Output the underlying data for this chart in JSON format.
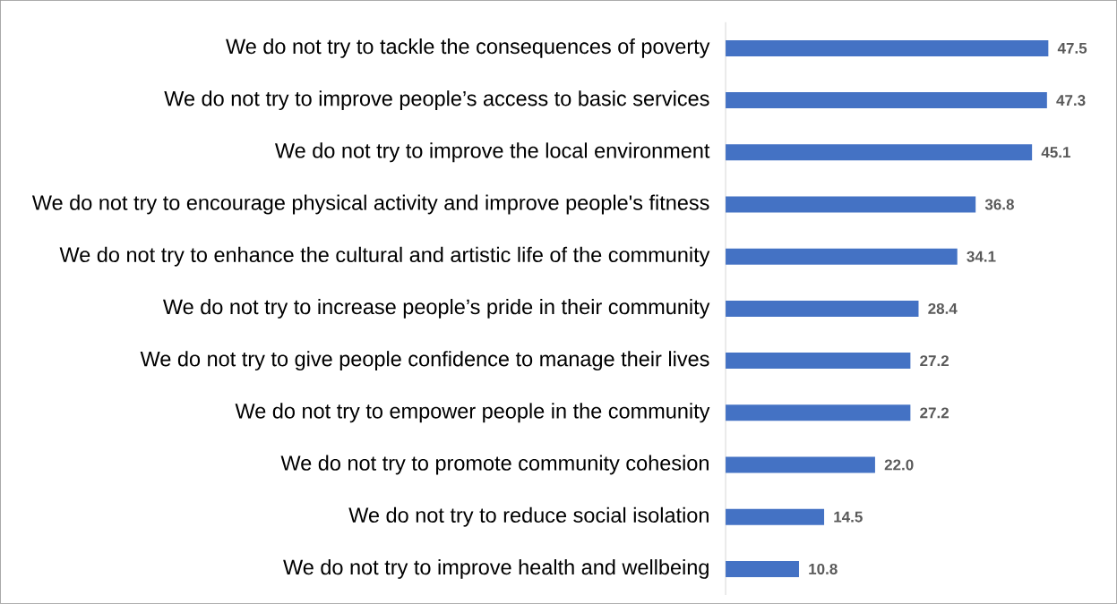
{
  "chart_data": {
    "type": "bar",
    "orientation": "horizontal",
    "color": "#4472c4",
    "categories": [
      "We do not try to tackle the consequences of poverty",
      "We do not try to improve people’s access to basic services",
      "We do not try to improve the local environment",
      "We do not try to encourage physical activity and improve people's fitness",
      "We do not try to enhance the cultural and artistic life of the community",
      "We do not try to increase people’s pride in their community",
      "We do not try to give people confidence to manage their lives",
      "We do not try to empower people in the community",
      "We do not try to promote community cohesion",
      "We do not try to reduce social isolation",
      "We do not try to improve health and wellbeing"
    ],
    "values": [
      47.5,
      47.3,
      45.1,
      36.8,
      34.1,
      28.4,
      27.2,
      27.2,
      22.0,
      14.5,
      10.8
    ],
    "value_labels": [
      "47.5",
      "47.3",
      "45.1",
      "36.8",
      "34.1",
      "28.4",
      "27.2",
      "27.2",
      "22.0",
      "14.5",
      "10.8"
    ]
  }
}
